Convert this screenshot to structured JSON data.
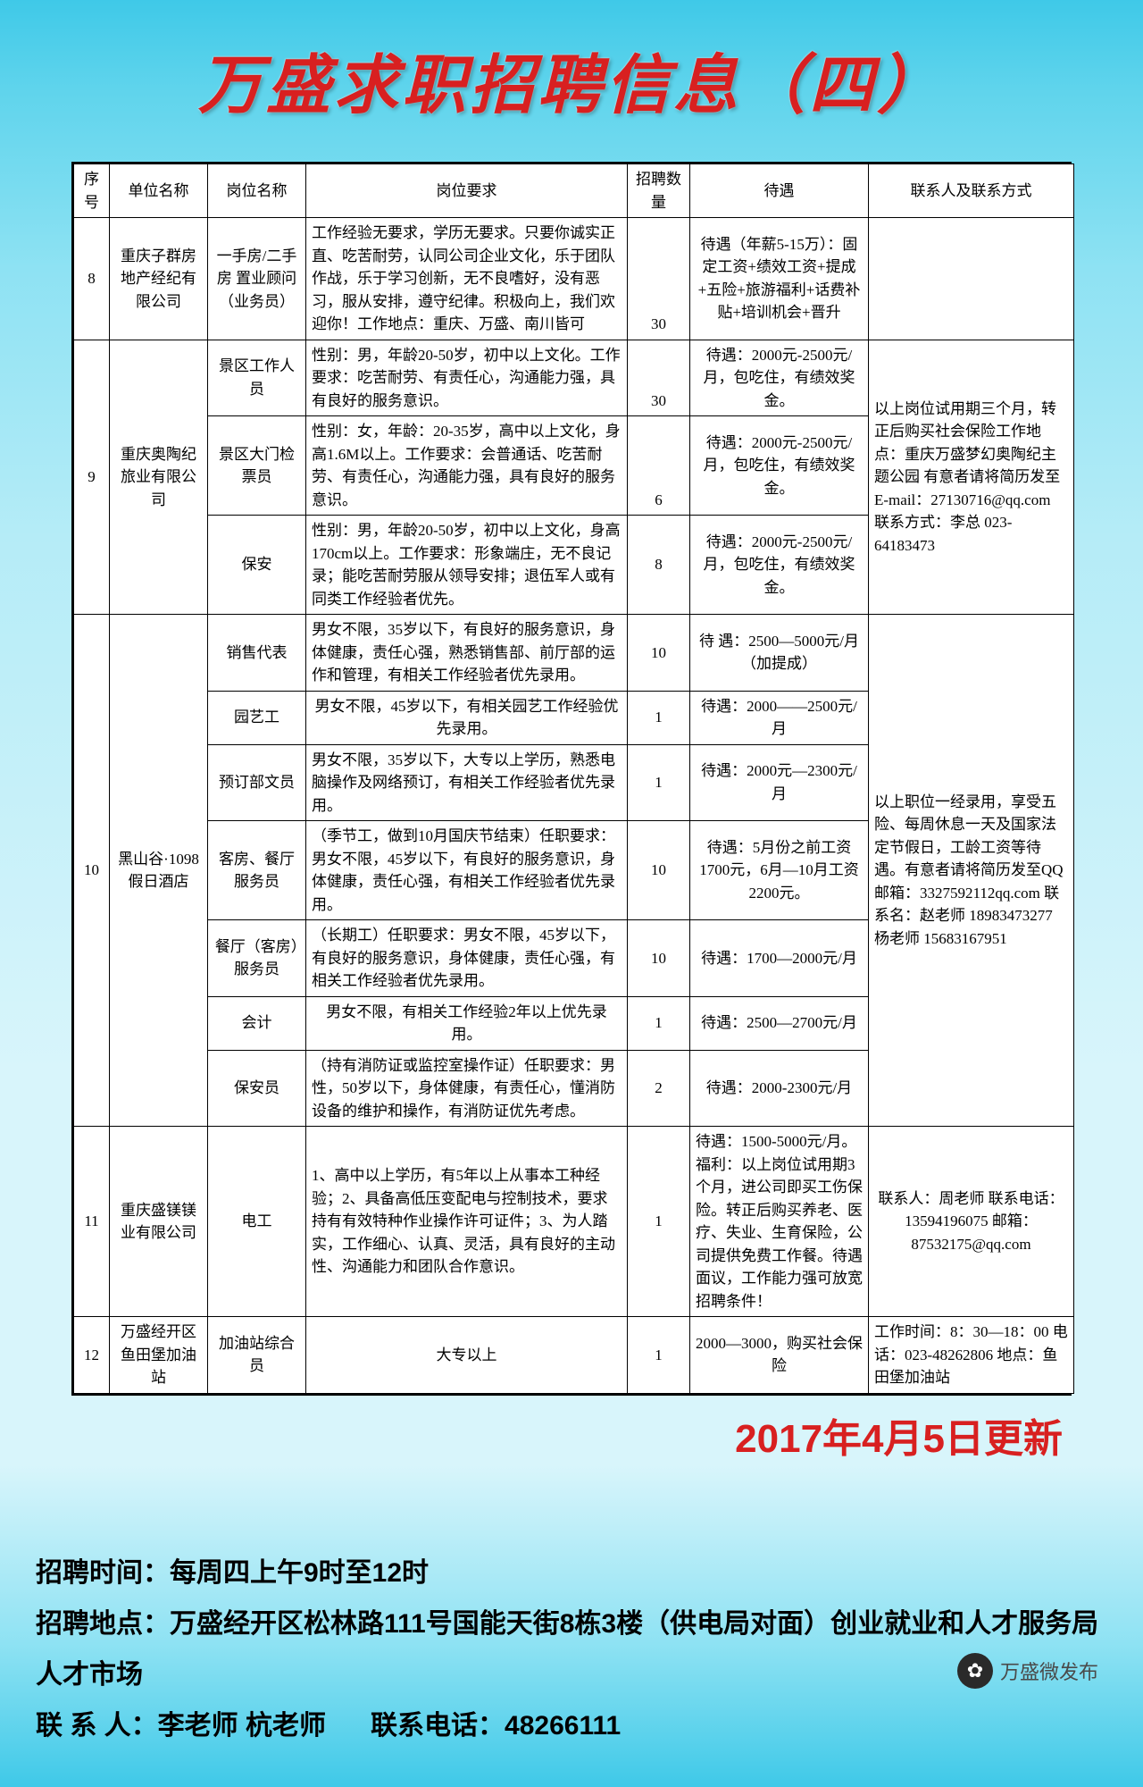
{
  "title": "万盛求职招聘信息（四）",
  "headers": {
    "idx": "序号",
    "org": "单位名称",
    "pos": "岗位名称",
    "req": "岗位要求",
    "num": "招聘数量",
    "pay": "待遇",
    "contact": "联系人及联系方式"
  },
  "rows": [
    {
      "idx": "8",
      "org": "重庆子群房地产经纪有限公司",
      "pos": "一手房/二手房 置业顾问（业务员）",
      "req": "工作经验无要求，学历无要求。只要你诚实正直、吃苦耐劳，认同公司企业文化，乐于团队作战，乐于学习创新，无不良嗜好，没有恶习，服从安排，遵守纪律。积极向上，我们欢迎你！工作地点：重庆、万盛、南川皆可",
      "num": "30",
      "pay": "待遇（年薪5-15万）：固定工资+绩效工资+提成+五险+旅游福利+话费补贴+培训机会+晋升",
      "contact": ""
    }
  ],
  "row9": {
    "idx": "9",
    "org": "重庆奥陶纪旅业有限公司",
    "contact": "以上岗位试用期三个月，转正后购买社会保险工作地点：重庆万盛梦幻奥陶纪主题公园 有意者请将简历发至E-mail：27130716@qq.com 联系方式：李总 023-64183473",
    "jobs": [
      {
        "pos": "景区工作人员",
        "req": "性别：男，年龄20-50岁，初中以上文化。工作要求：吃苦耐劳、有责任心，沟通能力强，具有良好的服务意识。",
        "num": "30",
        "pay": "待遇：2000元-2500元/月，包吃住，有绩效奖金。"
      },
      {
        "pos": "景区大门检票员",
        "req": "性别：女，年龄：20-35岁，高中以上文化，身高1.6M以上。工作要求：会普通话、吃苦耐劳、有责任心，沟通能力强，具有良好的服务意识。",
        "num": "6",
        "pay": "待遇：2000元-2500元/月，包吃住，有绩效奖金。"
      },
      {
        "pos": "保安",
        "req": "性别：男，年龄20-50岁，初中以上文化，身高170cm以上。工作要求：形象端庄，无不良记录；能吃苦耐劳服从领导安排；退伍军人或有同类工作经验者优先。",
        "num": "8",
        "pay": "待遇：2000元-2500元/月，包吃住，有绩效奖金。"
      }
    ]
  },
  "row10": {
    "idx": "10",
    "org": "黑山谷·1098假日酒店",
    "contact": "以上职位一经录用，享受五险、每周休息一天及国家法定节假日，工龄工资等待遇。有意者请将简历发至QQ邮箱：3327592112qq.com 联系名：赵老师 18983473277 杨老师 15683167951",
    "jobs": [
      {
        "pos": "销售代表",
        "req": "男女不限，35岁以下，有良好的服务意识，身体健康，责任心强，熟悉销售部、前厅部的运作和管理，有相关工作经验者优先录用。",
        "num": "10",
        "pay": "待 遇：2500—5000元/月（加提成）"
      },
      {
        "pos": "园艺工",
        "req": "男女不限，45岁以下，有相关园艺工作经验优先录用。",
        "num": "1",
        "pay": "待遇：2000——2500元/月"
      },
      {
        "pos": "预订部文员",
        "req": "男女不限，35岁以下，大专以上学历，熟悉电脑操作及网络预订，有相关工作经验者优先录用。",
        "num": "1",
        "pay": "待遇：2000元—2300元/月"
      },
      {
        "pos": "客房、餐厅服务员",
        "req": "（季节工，做到10月国庆节结束）任职要求：男女不限，45岁以下，有良好的服务意识，身体健康，责任心强，有相关工作经验者优先录用。",
        "num": "10",
        "pay": "待遇：5月份之前工资1700元，6月—10月工资2200元。"
      },
      {
        "pos": "餐厅（客房）服务员",
        "req": "（长期工）任职要求：男女不限，45岁以下，有良好的服务意识，身体健康，责任心强，有相关工作经验者优先录用。",
        "num": "10",
        "pay": "待遇：1700—2000元/月"
      },
      {
        "pos": "会计",
        "req": "男女不限，有相关工作经验2年以上优先录用。",
        "num": "1",
        "pay": "待遇：2500—2700元/月"
      },
      {
        "pos": "保安员",
        "req": "（持有消防证或监控室操作证）任职要求：男性，50岁以下，身体健康，有责任心，懂消防设备的维护和操作，有消防证优先考虑。",
        "num": "2",
        "pay": "待遇：2000-2300元/月"
      }
    ]
  },
  "row11": {
    "idx": "11",
    "org": "重庆盛镁镁业有限公司",
    "pos": "电工",
    "req": "1、高中以上学历，有5年以上从事本工种经验；2、具备高低压变配电与控制技术，要求持有有效特种作业操作许可证件；3、为人踏实，工作细心、认真、灵活，具有良好的主动性、沟通能力和团队合作意识。",
    "num": "1",
    "pay": "待遇：1500-5000元/月。福利：以上岗位试用期3个月，进公司即买工伤保险。转正后购买养老、医疗、失业、生育保险，公司提供免费工作餐。待遇面议，工作能力强可放宽招聘条件！",
    "contact": "联系人：周老师 联系电话：13594196075 邮箱：87532175@qq.com"
  },
  "row12": {
    "idx": "12",
    "org": "万盛经开区鱼田堡加油站",
    "pos": "加油站综合员",
    "req": "大专以上",
    "num": "1",
    "pay": "2000—3000，购买社会保险",
    "contact": "工作时间：8：30—18：00 电话：023-48262806 地点：鱼田堡加油站"
  },
  "update": "2017年4月5日更新",
  "footer": {
    "time_label": "招聘时间：",
    "time": "每周四上午9时至12时",
    "addr_label": "招聘地点：",
    "addr": "万盛经开区松林路111号国能天街8栋3楼（供电局对面）创业就业和人才服务局人才市场",
    "person_label": "联 系 人：",
    "person": "李老师 杭老师",
    "phone_label": "联系电话：",
    "phone": "48266111"
  },
  "wechat": "万盛微发布"
}
